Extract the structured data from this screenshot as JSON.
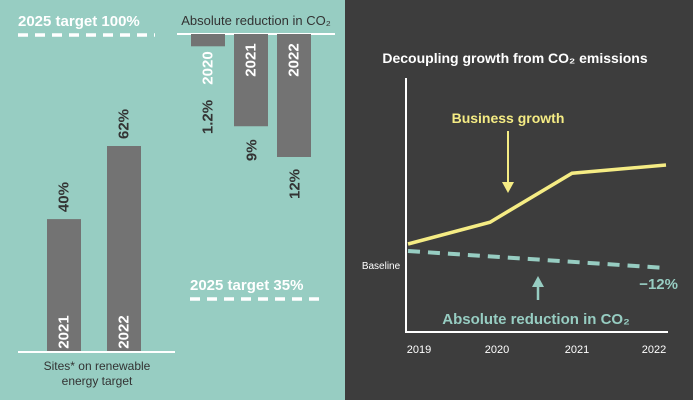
{
  "colors": {
    "left_bg": "#97cdc2",
    "right_bg": "#3d3d3d",
    "bar": "#737373",
    "yellow": "#f5ec84",
    "teal": "#97cdc2",
    "white": "#ffffff",
    "dark_text": "#333333"
  },
  "chart_data": [
    {
      "type": "bar",
      "title": "",
      "target_label": "2025 target 100%",
      "target_value": 100,
      "caption": [
        "Sites* on renewable",
        "energy target"
      ],
      "categories": [
        "2021",
        "2022"
      ],
      "values": [
        40,
        62
      ],
      "value_labels": [
        "40%",
        "62%"
      ],
      "ylim": [
        0,
        100
      ]
    },
    {
      "type": "bar",
      "title": "Absolute reduction in CO₂",
      "target_label": "2025 target 35%",
      "target_value": 35,
      "categories": [
        "2020",
        "2021",
        "2022"
      ],
      "values": [
        1.2,
        9,
        12
      ],
      "value_labels": [
        "1.2%",
        "9%",
        "12%"
      ],
      "orientation": "downward"
    },
    {
      "type": "line",
      "title": "Decoupling growth from CO₂ emissions",
      "x": [
        "2019",
        "2020",
        "2021",
        "2022"
      ],
      "y_axis_label": "Baseline",
      "series": [
        {
          "name": "Business growth",
          "x": [
            "2019",
            "2020",
            "2021",
            "2022"
          ],
          "values": [
            0,
            8,
            26,
            29
          ],
          "color": "#f5ec84",
          "style": "solid"
        },
        {
          "name": "Absolute reduction in CO₂",
          "x": [
            "2019",
            "2022"
          ],
          "values": [
            0,
            -12
          ],
          "color": "#97cdc2",
          "style": "dashed",
          "end_label": "−12%"
        }
      ]
    }
  ]
}
